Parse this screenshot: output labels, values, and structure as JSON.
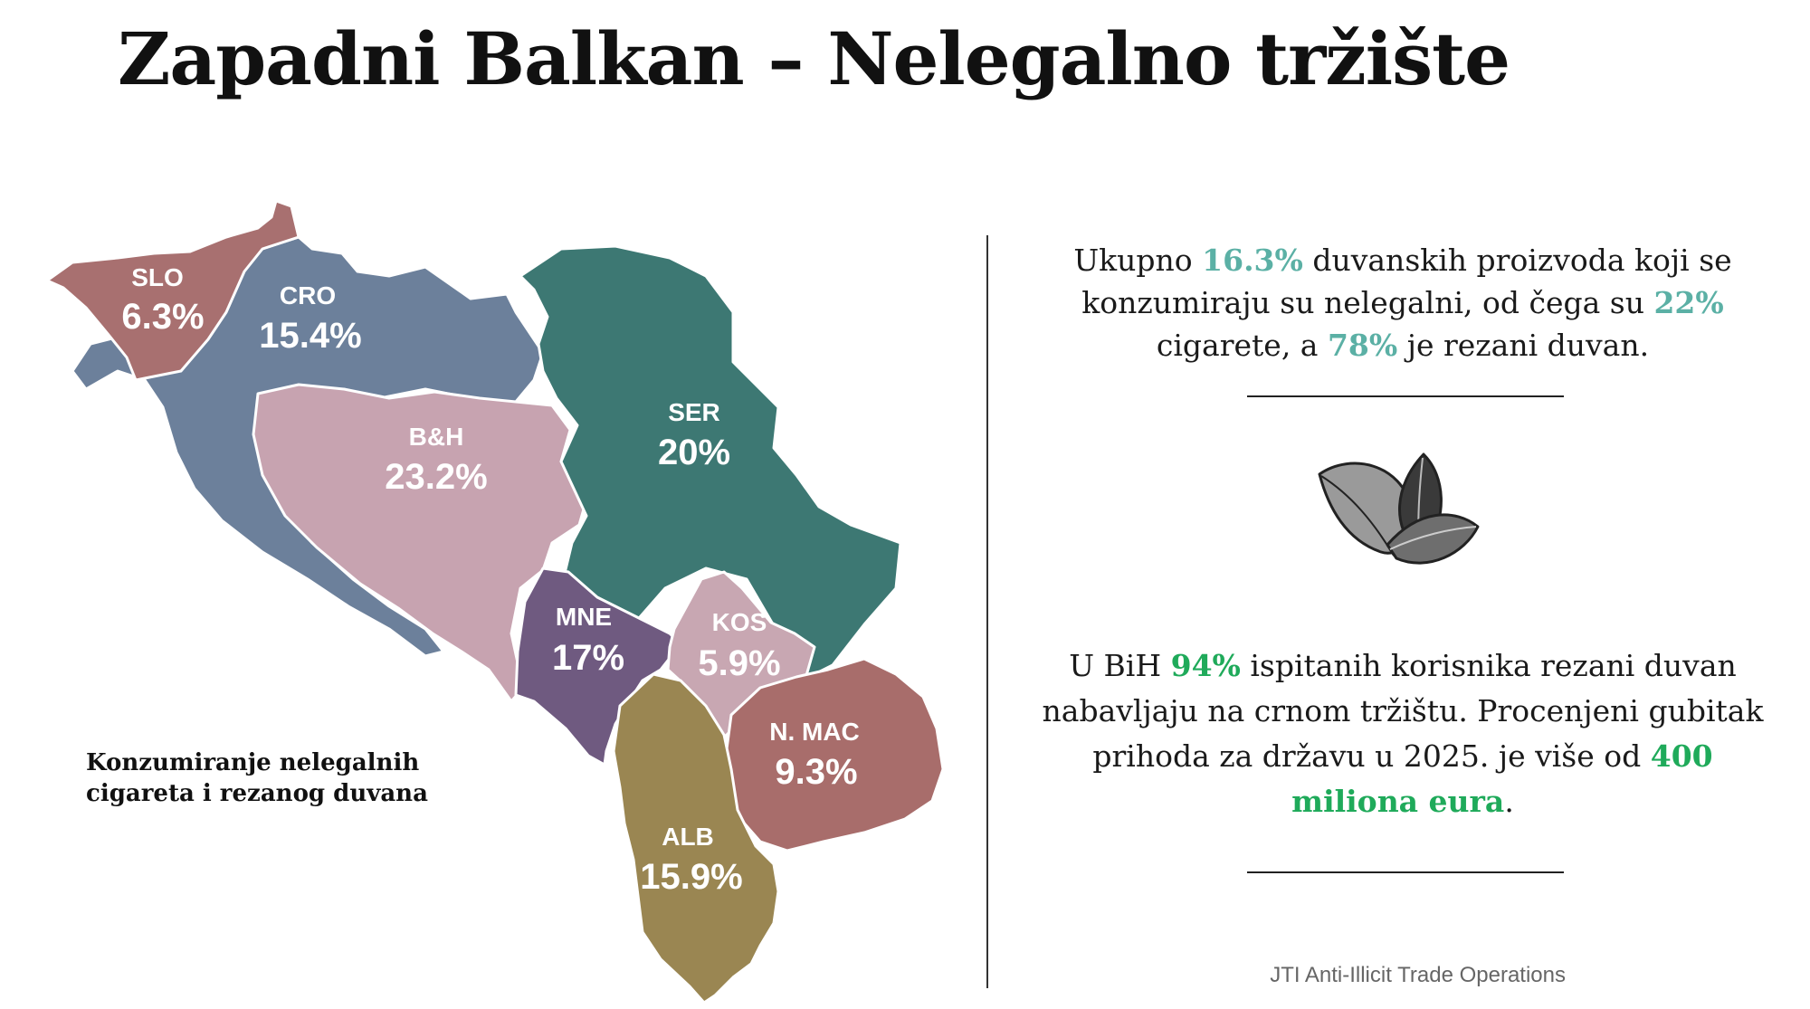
{
  "title": "Zapadni Balkan – Nelegalno tržište",
  "colors": {
    "slo": "#a87070",
    "cro": "#6c809b",
    "bih": "#c7a3b0",
    "ser": "#3d7873",
    "mne": "#6f5a80",
    "kos": "#c8a7b2",
    "mac": "#a86d6b",
    "alb": "#9a8652",
    "accent_teal": "#5bb0a5",
    "accent_green": "#1faa5a"
  },
  "regions": [
    {
      "code": "SLO",
      "value": "6.3%",
      "share_percent": 6.3
    },
    {
      "code": "CRO",
      "value": "15.4%",
      "share_percent": 15.4
    },
    {
      "code": "B&H",
      "value": "23.2%",
      "share_percent": 23.2
    },
    {
      "code": "SER",
      "value": "20%",
      "share_percent": 20
    },
    {
      "code": "MNE",
      "value": "17%",
      "share_percent": 17
    },
    {
      "code": "KOS",
      "value": "5.9%",
      "share_percent": 5.9
    },
    {
      "code": "N. MAC",
      "value": "9.3%",
      "share_percent": 9.3
    },
    {
      "code": "ALB",
      "value": "15.9%",
      "share_percent": 15.9
    }
  ],
  "map_caption": {
    "line1": "Konzumiranje nelegalnih",
    "line2": "cigareta i rezanog duvana"
  },
  "stat1": {
    "t1": "Ukupno ",
    "v1": "16.3%",
    "t2": " duvanskih proizvoda koji se konzumiraju su nelegalni, od čega su ",
    "v2": "22%",
    "t3": " cigarete, a ",
    "v3": "78%",
    "t4": " je rezani duvan."
  },
  "stat2": {
    "t1": "U BiH ",
    "v1": "94%",
    "t2": " ispitanih korisnika rezani duvan nabavljaju na crnom tržištu. Procenjeni gubitak prihoda za državu u 2025. je više od ",
    "v2": "400 miliona eura",
    "t3": "."
  },
  "icons": {
    "leaf": "tobacco-leaves-icon"
  },
  "source": "JTI Anti-Illicit Trade Operations"
}
